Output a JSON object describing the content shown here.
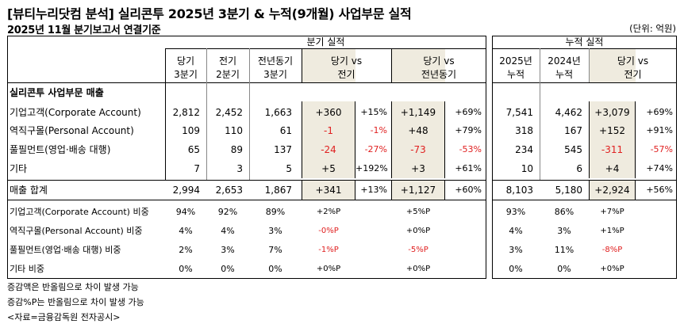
{
  "title": "[뷰티누리닷컴 분석] 실리콘투 2025년 3분기 & 누적(9개월) 사업부문 실적",
  "subtitle": "2025년 11월 분기보고서 연결기준",
  "unit": "(단위: 억원)",
  "headers": {
    "quarterly_group": "분기 실적",
    "cumulative_group": "누적 실적",
    "q_cur": [
      "당기",
      "3분기"
    ],
    "q_prev": [
      "전기",
      "2분기"
    ],
    "q_yoy": [
      "전년동기",
      "3분기"
    ],
    "q_vs_prev": [
      "당기 vs",
      "전기"
    ],
    "q_vs_yoy": [
      "당기 vs",
      "전년동기"
    ],
    "c_2025": [
      "2025년",
      "누적"
    ],
    "c_2024": [
      "2024년",
      "누적"
    ],
    "c_vs": [
      "당기 vs",
      "전기"
    ]
  },
  "section_label": "실리콘투 사업부문 매출",
  "rows": [
    {
      "label": "기업고객(Corporate Account)",
      "cur": "2,812",
      "prev": "2,452",
      "yoy": "1,663",
      "d_prev": "+360",
      "p_prev": "+15%",
      "d_yoy": "+1,149",
      "p_yoy": "+69%",
      "c25": "7,541",
      "c24": "4,462",
      "c_d": "+3,079",
      "c_p": "+69%",
      "neg": [
        false,
        false,
        false,
        false,
        false,
        false
      ]
    },
    {
      "label": "역직구몰(Personal Account)",
      "cur": "109",
      "prev": "110",
      "yoy": "61",
      "d_prev": "-1",
      "p_prev": "-1%",
      "d_yoy": "+48",
      "p_yoy": "+79%",
      "c25": "318",
      "c24": "167",
      "c_d": "+152",
      "c_p": "+91%",
      "neg": [
        true,
        true,
        false,
        false,
        false,
        false
      ]
    },
    {
      "label": "풀필먼트(영업·배송 대행)",
      "cur": "65",
      "prev": "89",
      "yoy": "137",
      "d_prev": "-24",
      "p_prev": "-27%",
      "d_yoy": "-73",
      "p_yoy": "-53%",
      "c25": "234",
      "c24": "545",
      "c_d": "-311",
      "c_p": "-57%",
      "neg": [
        true,
        true,
        true,
        true,
        true,
        true
      ]
    },
    {
      "label": "기타",
      "cur": "7",
      "prev": "3",
      "yoy": "5",
      "d_prev": "+5",
      "p_prev": "+192%",
      "d_yoy": "+3",
      "p_yoy": "+61%",
      "c25": "10",
      "c24": "6",
      "c_d": "+4",
      "c_p": "+74%",
      "neg": [
        false,
        false,
        false,
        false,
        false,
        false
      ]
    }
  ],
  "total": {
    "label": "매출 합계",
    "cur": "2,994",
    "prev": "2,653",
    "yoy": "1,867",
    "d_prev": "+341",
    "p_prev": "+13%",
    "d_yoy": "+1,127",
    "p_yoy": "+60%",
    "c25": "8,103",
    "c24": "5,180",
    "c_d": "+2,924",
    "c_p": "+56%"
  },
  "ratios": [
    {
      "label": "기업고객(Corporate Account) 비중",
      "cur": "94%",
      "prev": "92%",
      "yoy": "89%",
      "d_prev": "+2%P",
      "d_yoy": "+5%P",
      "c25": "93%",
      "c24": "86%",
      "c_d": "+7%P",
      "neg": [
        false,
        false,
        false
      ]
    },
    {
      "label": "역직구몰(Personal Account) 비중",
      "cur": "4%",
      "prev": "4%",
      "yoy": "3%",
      "d_prev": "-0%P",
      "d_yoy": "+0%P",
      "c25": "4%",
      "c24": "3%",
      "c_d": "+1%P",
      "neg": [
        true,
        false,
        false
      ]
    },
    {
      "label": "풀필먼트(영업·배송 대행) 비중",
      "cur": "2%",
      "prev": "3%",
      "yoy": "7%",
      "d_prev": "-1%P",
      "d_yoy": "-5%P",
      "c25": "3%",
      "c24": "11%",
      "c_d": "-8%P",
      "neg": [
        true,
        true,
        true
      ]
    },
    {
      "label": "기타 비중",
      "cur": "0%",
      "prev": "0%",
      "yoy": "0%",
      "d_prev": "+0%P",
      "d_yoy": "+0%P",
      "c25": "0%",
      "c24": "0%",
      "c_d": "+0%P",
      "neg": [
        false,
        false,
        false
      ]
    }
  ],
  "notes": [
    "증감액은 반올림으로 차이 발생 가능",
    "증감%P는 반올림으로 차이 발생 가능",
    "<자료=금융감독원 전자공시>"
  ],
  "colors": {
    "shade": "#efebdf",
    "negative": "#e02020"
  }
}
